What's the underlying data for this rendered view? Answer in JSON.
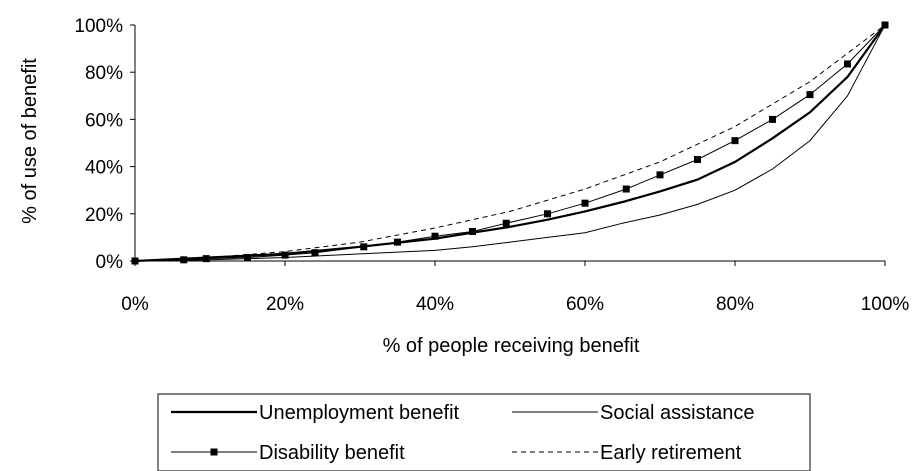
{
  "chart_data": {
    "type": "line",
    "xlabel": "% of people receiving benefit",
    "ylabel": "% of use of benefit",
    "xlim": [
      0,
      100
    ],
    "ylim": [
      0,
      100
    ],
    "x_ticks": [
      "0%",
      "20%",
      "40%",
      "60%",
      "80%",
      "100%"
    ],
    "y_ticks": [
      "0%",
      "20%",
      "40%",
      "60%",
      "80%",
      "100%"
    ],
    "grid": false,
    "legend_position": "bottom",
    "series": [
      {
        "name": "Unemployment benefit",
        "style": "solid-thick",
        "color": "#000000",
        "x": [
          0,
          10,
          20,
          30,
          40,
          45,
          50,
          55,
          60,
          65,
          70,
          75,
          80,
          85,
          90,
          95,
          100
        ],
        "y": [
          0,
          1.5,
          3,
          6,
          9.5,
          12,
          14.5,
          17.5,
          21,
          25,
          29.5,
          34.5,
          42,
          52,
          63,
          78,
          100
        ]
      },
      {
        "name": "Social assistance",
        "style": "solid-thin",
        "color": "#000000",
        "x": [
          0,
          10,
          20,
          30,
          40,
          45,
          50,
          55,
          60,
          65,
          70,
          75,
          80,
          85,
          90,
          95,
          98,
          100
        ],
        "y": [
          0,
          0.5,
          1.5,
          3,
          4.5,
          6,
          8,
          10,
          12,
          16,
          19.5,
          24,
          30,
          39,
          51,
          70,
          88,
          100
        ]
      },
      {
        "name": "Disability benefit",
        "style": "solid-square-markers",
        "color": "#000000",
        "x": [
          0,
          6.5,
          9.5,
          15,
          20,
          24,
          30.5,
          35,
          40,
          45,
          49.5,
          55,
          60,
          65.5,
          70,
          75,
          80,
          85,
          90,
          95,
          100
        ],
        "y": [
          0,
          0.5,
          1,
          1.5,
          2.5,
          3.5,
          6,
          8,
          10.5,
          12.5,
          16,
          20,
          24.5,
          30.5,
          36.5,
          43,
          51,
          60,
          70.5,
          83.5,
          100
        ]
      },
      {
        "name": "Early retirement",
        "style": "dashed",
        "color": "#000000",
        "x": [
          0,
          10,
          20,
          30,
          40,
          50,
          60,
          70,
          80,
          90,
          100
        ],
        "y": [
          0,
          1.5,
          4,
          8,
          14,
          21,
          30.5,
          42,
          57,
          76,
          100
        ]
      }
    ]
  }
}
